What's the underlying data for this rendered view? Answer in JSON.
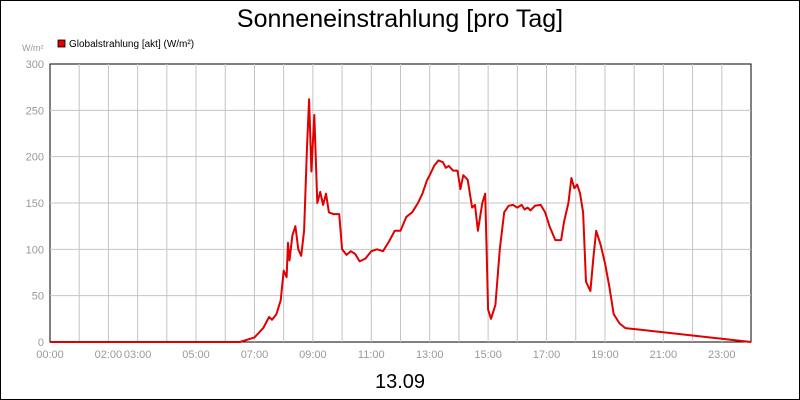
{
  "chart_data": {
    "type": "line",
    "title": "Sonneneinstrahlung [pro Tag]",
    "xlabel": "13.09",
    "ylabel": "",
    "y_unit": "W/m²",
    "ylim": [
      0,
      300
    ],
    "yticks": [
      0,
      50,
      100,
      150,
      200,
      250,
      300
    ],
    "xlim": [
      0,
      24
    ],
    "grid": true,
    "legend_position": "top-left",
    "xtick_labels": [
      {
        "x": 0,
        "label": "00:00"
      },
      {
        "x": 2,
        "label": "02:00"
      },
      {
        "x": 3,
        "label": "03:00"
      },
      {
        "x": 5,
        "label": "05:00"
      },
      {
        "x": 7,
        "label": "07:00"
      },
      {
        "x": 9,
        "label": "09:00"
      },
      {
        "x": 11,
        "label": "11:00"
      },
      {
        "x": 13,
        "label": "13:00"
      },
      {
        "x": 15,
        "label": "15:00"
      },
      {
        "x": 17,
        "label": "17:00"
      },
      {
        "x": 19,
        "label": "19:00"
      },
      {
        "x": 21,
        "label": "21:00"
      },
      {
        "x": 23,
        "label": "23:00"
      }
    ],
    "series": [
      {
        "name": "Globalstrahlung [akt] (W/m²)",
        "color": "#e00000",
        "x": [
          0,
          6.5,
          7.0,
          7.3,
          7.5,
          7.6,
          7.75,
          7.9,
          8.0,
          8.1,
          8.15,
          8.2,
          8.3,
          8.4,
          8.5,
          8.6,
          8.7,
          8.8,
          8.87,
          8.95,
          9.05,
          9.15,
          9.25,
          9.35,
          9.45,
          9.55,
          9.7,
          9.9,
          10.0,
          10.15,
          10.3,
          10.45,
          10.6,
          10.8,
          11.0,
          11.2,
          11.4,
          11.6,
          11.8,
          12.0,
          12.2,
          12.4,
          12.6,
          12.75,
          12.9,
          13.0,
          13.15,
          13.3,
          13.45,
          13.55,
          13.65,
          13.8,
          13.95,
          14.05,
          14.15,
          14.3,
          14.45,
          14.55,
          14.65,
          14.8,
          14.9,
          15.0,
          15.1,
          15.25,
          15.4,
          15.55,
          15.7,
          15.85,
          16.0,
          16.15,
          16.25,
          16.35,
          16.45,
          16.6,
          16.8,
          16.95,
          17.1,
          17.3,
          17.5,
          17.6,
          17.75,
          17.85,
          17.95,
          18.05,
          18.15,
          18.25,
          18.35,
          18.5,
          18.6,
          18.7,
          18.85,
          19.0,
          19.15,
          19.3,
          19.5,
          19.7,
          24.0
        ],
        "y": [
          0,
          0,
          5,
          15,
          27,
          24,
          30,
          45,
          77,
          70,
          107,
          88,
          115,
          125,
          100,
          93,
          120,
          210,
          262,
          184,
          245,
          150,
          162,
          148,
          160,
          140,
          138,
          138,
          100,
          94,
          98,
          95,
          87,
          90,
          98,
          100,
          98,
          108,
          120,
          120,
          135,
          140,
          150,
          160,
          174,
          180,
          190,
          196,
          194,
          188,
          190,
          185,
          185,
          165,
          180,
          175,
          145,
          148,
          120,
          150,
          160,
          35,
          25,
          40,
          100,
          140,
          147,
          148,
          145,
          148,
          143,
          145,
          142,
          147,
          148,
          140,
          125,
          110,
          110,
          130,
          150,
          177,
          166,
          170,
          160,
          140,
          65,
          55,
          90,
          120,
          105,
          85,
          60,
          30,
          20,
          15,
          0
        ]
      }
    ]
  }
}
